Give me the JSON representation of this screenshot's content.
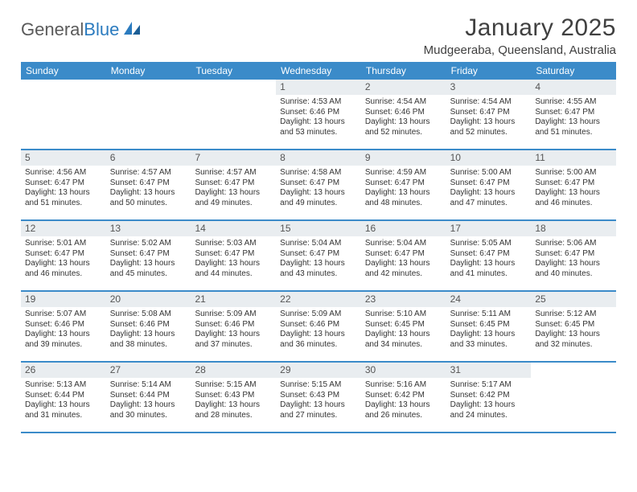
{
  "logo": {
    "part1": "General",
    "part2": "Blue"
  },
  "title": "January 2025",
  "location": "Mudgeeraba, Queensland, Australia",
  "colors": {
    "header_bg": "#3b8bc9",
    "header_text": "#ffffff",
    "daynum_bg": "#e9edf0",
    "row_border": "#3b8bc9",
    "logo_gray": "#5a5a5a",
    "logo_blue": "#2b7bbf",
    "body_text": "#333333",
    "title_text": "#404040"
  },
  "weekdays": [
    "Sunday",
    "Monday",
    "Tuesday",
    "Wednesday",
    "Thursday",
    "Friday",
    "Saturday"
  ],
  "weeks": [
    [
      {
        "empty": true
      },
      {
        "empty": true
      },
      {
        "empty": true
      },
      {
        "day": "1",
        "sunrise": "Sunrise: 4:53 AM",
        "sunset": "Sunset: 6:46 PM",
        "daylight": "Daylight: 13 hours and 53 minutes."
      },
      {
        "day": "2",
        "sunrise": "Sunrise: 4:54 AM",
        "sunset": "Sunset: 6:46 PM",
        "daylight": "Daylight: 13 hours and 52 minutes."
      },
      {
        "day": "3",
        "sunrise": "Sunrise: 4:54 AM",
        "sunset": "Sunset: 6:47 PM",
        "daylight": "Daylight: 13 hours and 52 minutes."
      },
      {
        "day": "4",
        "sunrise": "Sunrise: 4:55 AM",
        "sunset": "Sunset: 6:47 PM",
        "daylight": "Daylight: 13 hours and 51 minutes."
      }
    ],
    [
      {
        "day": "5",
        "sunrise": "Sunrise: 4:56 AM",
        "sunset": "Sunset: 6:47 PM",
        "daylight": "Daylight: 13 hours and 51 minutes."
      },
      {
        "day": "6",
        "sunrise": "Sunrise: 4:57 AM",
        "sunset": "Sunset: 6:47 PM",
        "daylight": "Daylight: 13 hours and 50 minutes."
      },
      {
        "day": "7",
        "sunrise": "Sunrise: 4:57 AM",
        "sunset": "Sunset: 6:47 PM",
        "daylight": "Daylight: 13 hours and 49 minutes."
      },
      {
        "day": "8",
        "sunrise": "Sunrise: 4:58 AM",
        "sunset": "Sunset: 6:47 PM",
        "daylight": "Daylight: 13 hours and 49 minutes."
      },
      {
        "day": "9",
        "sunrise": "Sunrise: 4:59 AM",
        "sunset": "Sunset: 6:47 PM",
        "daylight": "Daylight: 13 hours and 48 minutes."
      },
      {
        "day": "10",
        "sunrise": "Sunrise: 5:00 AM",
        "sunset": "Sunset: 6:47 PM",
        "daylight": "Daylight: 13 hours and 47 minutes."
      },
      {
        "day": "11",
        "sunrise": "Sunrise: 5:00 AM",
        "sunset": "Sunset: 6:47 PM",
        "daylight": "Daylight: 13 hours and 46 minutes."
      }
    ],
    [
      {
        "day": "12",
        "sunrise": "Sunrise: 5:01 AM",
        "sunset": "Sunset: 6:47 PM",
        "daylight": "Daylight: 13 hours and 46 minutes."
      },
      {
        "day": "13",
        "sunrise": "Sunrise: 5:02 AM",
        "sunset": "Sunset: 6:47 PM",
        "daylight": "Daylight: 13 hours and 45 minutes."
      },
      {
        "day": "14",
        "sunrise": "Sunrise: 5:03 AM",
        "sunset": "Sunset: 6:47 PM",
        "daylight": "Daylight: 13 hours and 44 minutes."
      },
      {
        "day": "15",
        "sunrise": "Sunrise: 5:04 AM",
        "sunset": "Sunset: 6:47 PM",
        "daylight": "Daylight: 13 hours and 43 minutes."
      },
      {
        "day": "16",
        "sunrise": "Sunrise: 5:04 AM",
        "sunset": "Sunset: 6:47 PM",
        "daylight": "Daylight: 13 hours and 42 minutes."
      },
      {
        "day": "17",
        "sunrise": "Sunrise: 5:05 AM",
        "sunset": "Sunset: 6:47 PM",
        "daylight": "Daylight: 13 hours and 41 minutes."
      },
      {
        "day": "18",
        "sunrise": "Sunrise: 5:06 AM",
        "sunset": "Sunset: 6:47 PM",
        "daylight": "Daylight: 13 hours and 40 minutes."
      }
    ],
    [
      {
        "day": "19",
        "sunrise": "Sunrise: 5:07 AM",
        "sunset": "Sunset: 6:46 PM",
        "daylight": "Daylight: 13 hours and 39 minutes."
      },
      {
        "day": "20",
        "sunrise": "Sunrise: 5:08 AM",
        "sunset": "Sunset: 6:46 PM",
        "daylight": "Daylight: 13 hours and 38 minutes."
      },
      {
        "day": "21",
        "sunrise": "Sunrise: 5:09 AM",
        "sunset": "Sunset: 6:46 PM",
        "daylight": "Daylight: 13 hours and 37 minutes."
      },
      {
        "day": "22",
        "sunrise": "Sunrise: 5:09 AM",
        "sunset": "Sunset: 6:46 PM",
        "daylight": "Daylight: 13 hours and 36 minutes."
      },
      {
        "day": "23",
        "sunrise": "Sunrise: 5:10 AM",
        "sunset": "Sunset: 6:45 PM",
        "daylight": "Daylight: 13 hours and 34 minutes."
      },
      {
        "day": "24",
        "sunrise": "Sunrise: 5:11 AM",
        "sunset": "Sunset: 6:45 PM",
        "daylight": "Daylight: 13 hours and 33 minutes."
      },
      {
        "day": "25",
        "sunrise": "Sunrise: 5:12 AM",
        "sunset": "Sunset: 6:45 PM",
        "daylight": "Daylight: 13 hours and 32 minutes."
      }
    ],
    [
      {
        "day": "26",
        "sunrise": "Sunrise: 5:13 AM",
        "sunset": "Sunset: 6:44 PM",
        "daylight": "Daylight: 13 hours and 31 minutes."
      },
      {
        "day": "27",
        "sunrise": "Sunrise: 5:14 AM",
        "sunset": "Sunset: 6:44 PM",
        "daylight": "Daylight: 13 hours and 30 minutes."
      },
      {
        "day": "28",
        "sunrise": "Sunrise: 5:15 AM",
        "sunset": "Sunset: 6:43 PM",
        "daylight": "Daylight: 13 hours and 28 minutes."
      },
      {
        "day": "29",
        "sunrise": "Sunrise: 5:15 AM",
        "sunset": "Sunset: 6:43 PM",
        "daylight": "Daylight: 13 hours and 27 minutes."
      },
      {
        "day": "30",
        "sunrise": "Sunrise: 5:16 AM",
        "sunset": "Sunset: 6:42 PM",
        "daylight": "Daylight: 13 hours and 26 minutes."
      },
      {
        "day": "31",
        "sunrise": "Sunrise: 5:17 AM",
        "sunset": "Sunset: 6:42 PM",
        "daylight": "Daylight: 13 hours and 24 minutes."
      },
      {
        "empty": true
      }
    ]
  ]
}
